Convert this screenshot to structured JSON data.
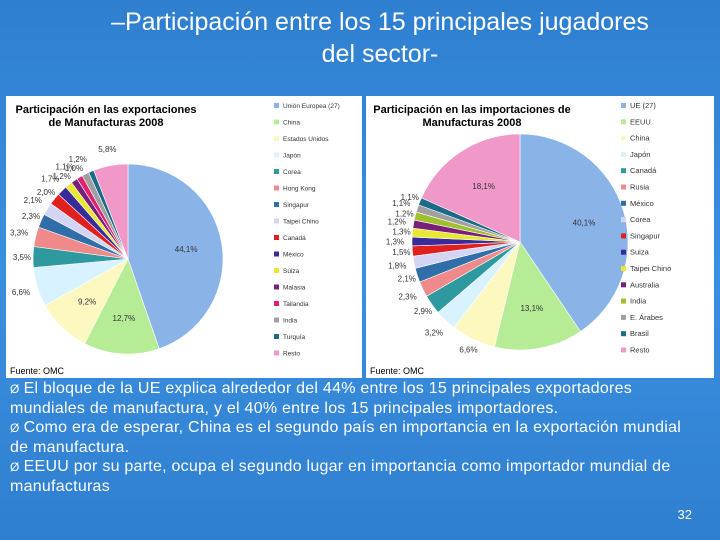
{
  "slide": {
    "title_line1": "–Participación entre los 15 principales jugadores",
    "title_line2": "del sector-",
    "bullets": [
      "El bloque de la UE explica alrededor del 44% entre los 15 principales exportadores mundiales de manufactura, y el 40% entre los 15 principales importadores.",
      "Como era de esperar, China es el segundo país en importancia en la exportación mundial de manufactura.",
      "EEUU por su parte, ocupa el segundo lugar en importancia como importador mundial de manufacturas"
    ],
    "bullet_glyph": "Ø",
    "page_number": "32"
  },
  "chart_data": [
    {
      "type": "pie",
      "title_line1": "Participación en las exportaciones",
      "title_line2": "de Manufacturas 2008",
      "source": "Fuente: OMC",
      "categories": [
        "Unión Europea (27)",
        "China",
        "Estados Unidos",
        "Japón",
        "Corea",
        "Hong Kong",
        "Singapur",
        "Taipei Chino",
        "Canadá",
        "México",
        "Suiza",
        "Malasia",
        "Tailandia",
        "India",
        "Turquía",
        "Resto"
      ],
      "values": [
        44.1,
        12.7,
        9.2,
        6.6,
        3.5,
        3.3,
        2.3,
        2.1,
        2.0,
        1.7,
        1.2,
        1.1,
        1.0,
        1.2,
        0.9,
        5.8
      ],
      "data_labels": [
        "44,1%",
        "12,7%",
        "9,2%",
        "6,6%",
        "3,5%",
        "3,3%",
        "2,3%",
        "2,1%",
        "2,0%",
        "1,7%",
        "1,2%",
        "1,1%",
        "1,0%",
        "1,2%",
        "",
        "5,8%"
      ],
      "colors": [
        "#8ab4e8",
        "#b5ec95",
        "#fdf8c0",
        "#d8f3ff",
        "#2e9aa0",
        "#f08a8a",
        "#2f6ea8",
        "#d4d4f4",
        "#e0201f",
        "#3a2a9a",
        "#e8e830",
        "#7a1f7a",
        "#e02070",
        "#a0a0a0",
        "#1a6a88",
        "#f098c8"
      ],
      "legend": [
        "Unión Europea (27)",
        "China",
        "Estados Unidos",
        "Japón",
        "Corea",
        "Hong Kong",
        "Singapur",
        "Taipei Chino",
        "Canadá",
        "México",
        "Suiza",
        "Malasia",
        "Tailandia",
        "India",
        "Turquía",
        "Resto"
      ]
    },
    {
      "type": "pie",
      "title_line1": "Participación en las importaciones de",
      "title_line2": "Manufacturas 2008",
      "source": "Fuente: OMC",
      "categories": [
        "UE (27)",
        "EEUU",
        "China",
        "Japón",
        "Canadá",
        "Rusia",
        "México",
        "Corea",
        "Singapur",
        "Suiza",
        "Taipei Chino",
        "Australia",
        "India",
        "E. Árabes",
        "Brasil",
        "Resto"
      ],
      "values": [
        40.1,
        13.1,
        6.6,
        3.2,
        2.9,
        2.3,
        2.1,
        1.8,
        1.5,
        1.3,
        1.3,
        1.2,
        1.2,
        1.1,
        1.1,
        18.1
      ],
      "data_labels": [
        "40,1%",
        "13,1%",
        "6,6%",
        "3,2%",
        "2,9%",
        "2,3%",
        "2,1%",
        "1,8%",
        "1,5%",
        "1,3%",
        "1,3%",
        "1,2%",
        "1,2%",
        "1,1%",
        "1,1%",
        "18,1%"
      ],
      "colors": [
        "#8ab4e8",
        "#b5ec95",
        "#fdf8c0",
        "#d8f3ff",
        "#2e9aa0",
        "#f08a8a",
        "#2f6ea8",
        "#d4d4f4",
        "#e0201f",
        "#3a2a9a",
        "#e8e830",
        "#7a1f7a",
        "#a0c030",
        "#a0a0a0",
        "#1a6a88",
        "#f098c8"
      ],
      "legend": [
        "UE (27)",
        "EEUU",
        "China",
        "Japón",
        "Canadá",
        "Rusia",
        "México",
        "Corea",
        "Singapur",
        "Suiza",
        "Taipei Chino",
        "Australia",
        "India",
        "E. Árabes",
        "Brasil",
        "Resto"
      ]
    }
  ]
}
